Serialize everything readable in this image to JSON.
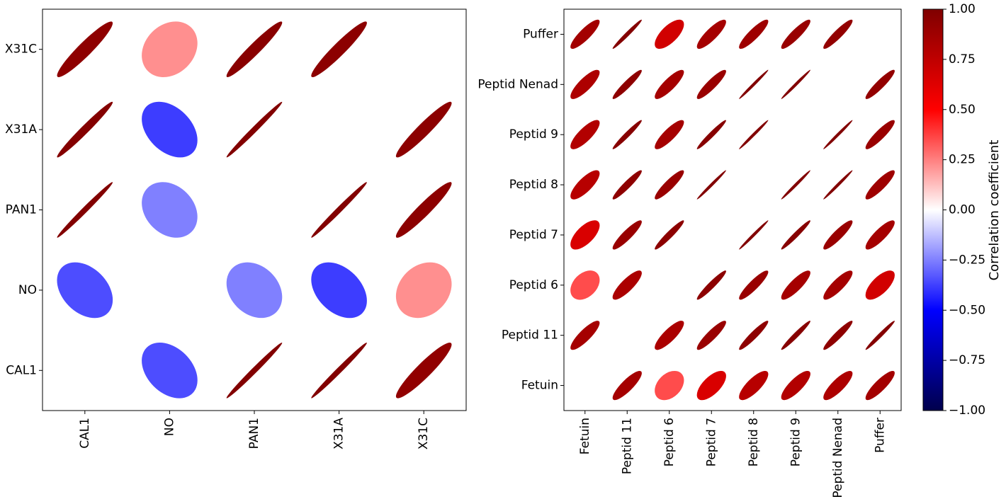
{
  "chart_data": [
    {
      "type": "heatmap",
      "subtype": "ellipse-correlation-matrix",
      "categories": [
        "CAL1",
        "NO",
        "PAN1",
        "X31A",
        "X31C"
      ],
      "x_tick_labels": [
        "CAL1",
        "NO",
        "PAN1",
        "X31A",
        "X31C"
      ],
      "y_tick_labels_bottom_to_top": [
        "CAL1",
        "NO",
        "PAN1",
        "X31A",
        "X31C"
      ],
      "matrix_row_order": "rows indexed by y category (bottom to top), columns by x category",
      "values": [
        [
          null,
          -0.35,
          0.99,
          0.99,
          0.93
        ],
        [
          -0.35,
          null,
          -0.25,
          -0.38,
          0.22
        ],
        [
          0.99,
          -0.25,
          null,
          0.99,
          0.95
        ],
        [
          0.98,
          -0.38,
          0.99,
          null,
          0.95
        ],
        [
          0.94,
          0.22,
          0.96,
          0.95,
          null
        ]
      ],
      "grid": false
    },
    {
      "type": "heatmap",
      "subtype": "ellipse-correlation-matrix",
      "categories": [
        "Fetuin",
        "Peptid 11",
        "Peptid 6",
        "Peptid 7",
        "Peptid 8",
        "Peptid 9",
        "Peptid Nenad",
        "Puffer"
      ],
      "x_tick_labels": [
        "Fetuin",
        "Peptid 11",
        "Peptid 6",
        "Peptid 7",
        "Peptid 8",
        "Peptid 9",
        "Peptid Nenad",
        "Puffer"
      ],
      "y_tick_labels_bottom_to_top": [
        "Fetuin",
        "Peptid 11",
        "Peptid 6",
        "Peptid 7",
        "Peptid 8",
        "Peptid 9",
        "Peptid Nenad",
        "Puffer"
      ],
      "matrix_row_order": "rows indexed by y category (bottom to top), columns by x category",
      "values": [
        [
          null,
          0.85,
          0.35,
          0.65,
          0.78,
          0.8,
          0.82,
          0.86
        ],
        [
          0.85,
          null,
          0.83,
          0.9,
          0.94,
          0.97,
          0.94,
          0.98
        ],
        [
          0.35,
          0.83,
          null,
          0.95,
          0.9,
          0.85,
          0.85,
          0.68
        ],
        [
          0.65,
          0.9,
          0.95,
          null,
          0.99,
          0.97,
          0.9,
          0.85
        ],
        [
          0.78,
          0.94,
          0.9,
          0.99,
          null,
          0.99,
          0.99,
          0.88
        ],
        [
          0.8,
          0.97,
          0.85,
          0.97,
          0.99,
          null,
          0.99,
          0.9
        ],
        [
          0.82,
          0.94,
          0.85,
          0.9,
          0.99,
          0.99,
          null,
          0.92
        ],
        [
          0.86,
          0.98,
          0.68,
          0.85,
          0.88,
          0.9,
          0.92,
          null
        ]
      ],
      "grid": false
    }
  ],
  "colorbar": {
    "label": "Correlation coefficient",
    "range": [
      -1.0,
      1.0
    ],
    "tick_values": [
      -1.0,
      -0.75,
      -0.5,
      -0.25,
      0.0,
      0.25,
      0.5,
      0.75,
      1.0
    ],
    "tick_labels": [
      "−1.00",
      "−0.75",
      "−0.50",
      "−0.25",
      "0.00",
      "0.25",
      "0.50",
      "0.75",
      "1.00"
    ],
    "colormap": "seismic",
    "colors": {
      "min": "#00004c",
      "low": "#0000ff",
      "mid": "#ffffff",
      "high": "#ff0000",
      "max": "#7f0000"
    }
  }
}
